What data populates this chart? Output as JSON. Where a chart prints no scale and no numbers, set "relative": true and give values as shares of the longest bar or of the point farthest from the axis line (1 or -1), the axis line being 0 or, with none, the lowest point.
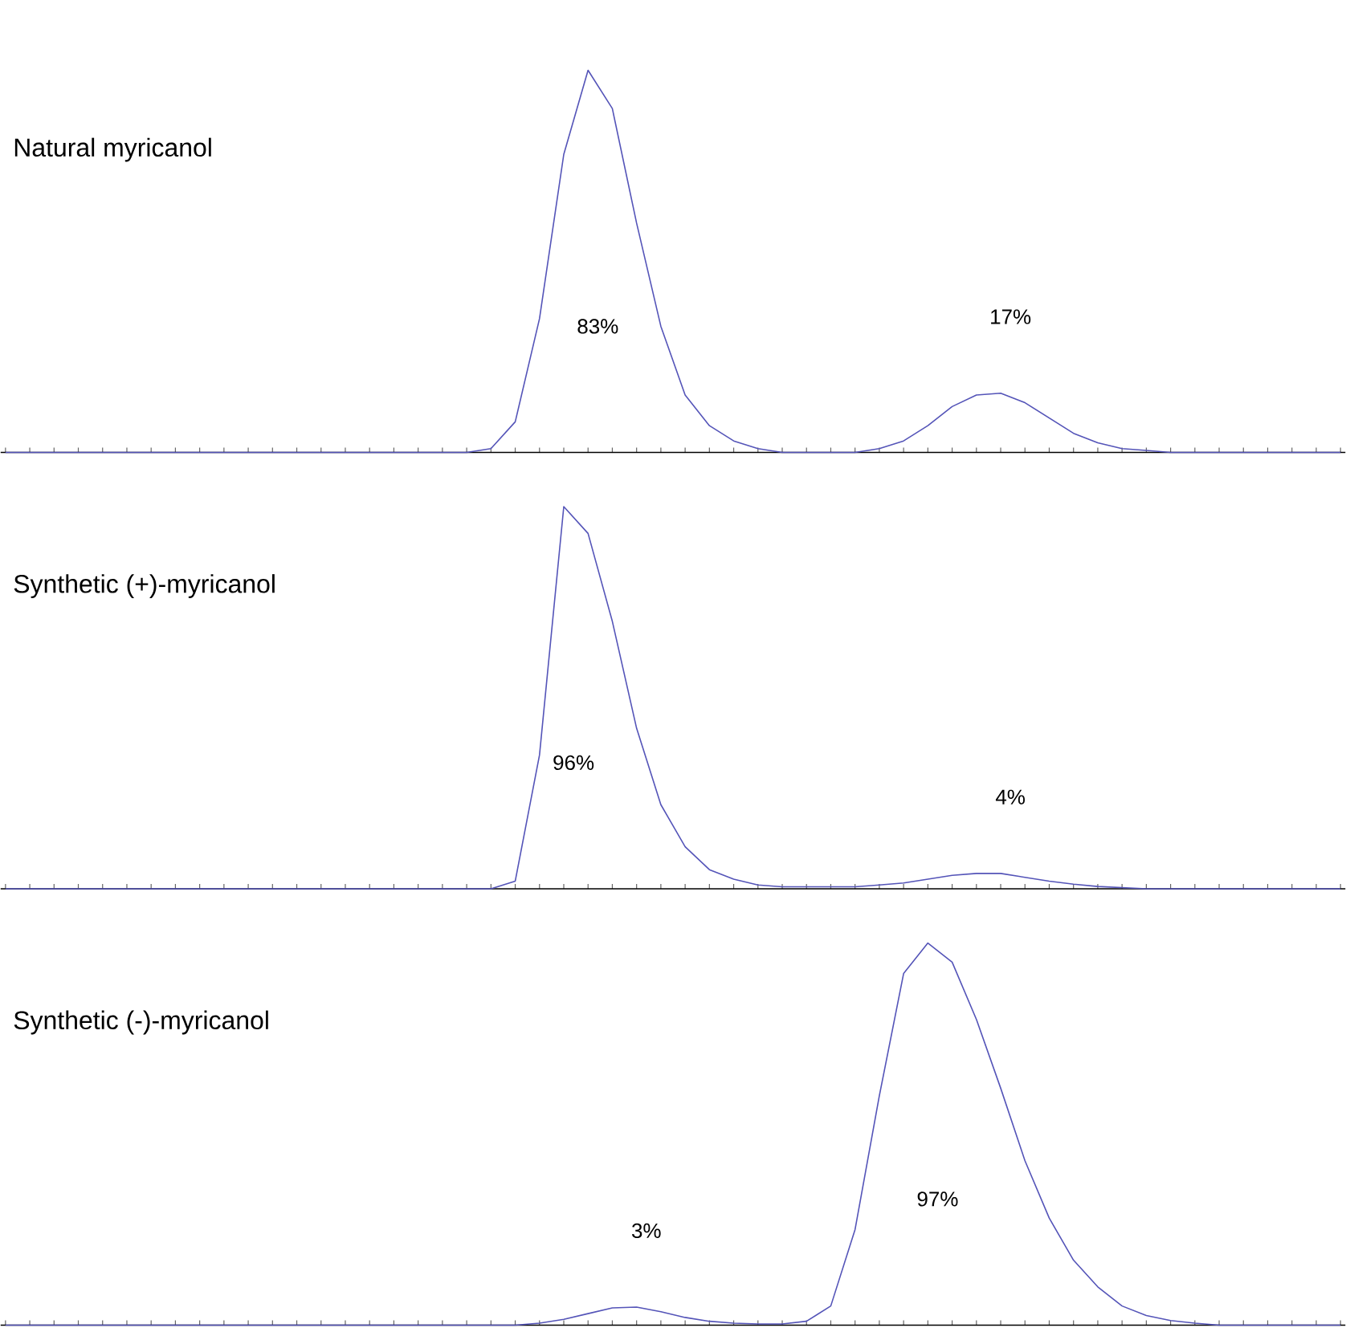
{
  "chart_data": [
    {
      "type": "line",
      "title": "Natural myricanol",
      "relative": true,
      "categories": [
        null,
        null,
        null,
        null,
        null,
        null,
        null,
        null,
        null,
        null,
        null,
        null,
        null,
        null,
        null,
        null,
        null,
        null,
        null,
        null,
        null,
        null,
        null,
        null,
        null,
        null,
        null,
        null,
        null,
        null,
        null,
        null,
        null,
        null,
        null,
        null,
        null,
        null,
        null,
        null,
        null,
        null,
        null,
        null,
        null,
        null,
        null,
        null,
        null,
        null,
        null,
        null,
        null,
        null,
        null,
        null
      ],
      "series": [
        {
          "color": "#5454b8",
          "values": [
            0,
            0,
            0,
            0,
            0,
            0,
            0,
            0,
            0,
            0,
            0,
            0,
            0,
            0,
            0,
            0,
            0,
            0,
            0,
            0,
            0.01,
            0.08,
            0.35,
            0.78,
            1.0,
            0.9,
            0.6,
            0.33,
            0.15,
            0.07,
            0.03,
            0.01,
            0,
            0,
            0,
            0,
            0.01,
            0.03,
            0.07,
            0.12,
            0.15,
            0.155,
            0.13,
            0.09,
            0.05,
            0.025,
            0.01,
            0.005,
            0,
            0,
            0,
            0,
            0,
            0,
            0,
            0
          ]
        }
      ],
      "annotations": [
        "83%",
        "17%"
      ]
    },
    {
      "type": "line",
      "title": "Synthetic (+)-myricanol",
      "relative": true,
      "categories": [
        null,
        null,
        null,
        null,
        null,
        null,
        null,
        null,
        null,
        null,
        null,
        null,
        null,
        null,
        null,
        null,
        null,
        null,
        null,
        null,
        null,
        null,
        null,
        null,
        null,
        null,
        null,
        null,
        null,
        null,
        null,
        null,
        null,
        null,
        null,
        null,
        null,
        null,
        null,
        null,
        null,
        null,
        null,
        null,
        null,
        null,
        null,
        null,
        null,
        null,
        null,
        null,
        null,
        null,
        null,
        null
      ],
      "series": [
        {
          "color": "#5454b8",
          "values": [
            0,
            0,
            0,
            0,
            0,
            0,
            0,
            0,
            0,
            0,
            0,
            0,
            0,
            0,
            0,
            0,
            0,
            0,
            0,
            0,
            0,
            0.02,
            0.35,
            1.0,
            0.93,
            0.7,
            0.42,
            0.22,
            0.11,
            0.05,
            0.025,
            0.01,
            0.005,
            0.005,
            0.005,
            0.005,
            0.01,
            0.015,
            0.025,
            0.035,
            0.04,
            0.04,
            0.03,
            0.02,
            0.012,
            0.006,
            0.003,
            0,
            0,
            0,
            0,
            0,
            0,
            0,
            0,
            0
          ]
        }
      ],
      "annotations": [
        "96%",
        "4%"
      ]
    },
    {
      "type": "line",
      "title": "Synthetic (-)-myricanol",
      "relative": true,
      "categories": [
        null,
        null,
        null,
        null,
        null,
        null,
        null,
        null,
        null,
        null,
        null,
        null,
        null,
        null,
        null,
        null,
        null,
        null,
        null,
        null,
        null,
        null,
        null,
        null,
        null,
        null,
        null,
        null,
        null,
        null,
        null,
        null,
        null,
        null,
        null,
        null,
        null,
        null,
        null,
        null,
        null,
        null,
        null,
        null,
        null,
        null,
        null,
        null,
        null,
        null,
        null,
        null,
        null,
        null,
        null,
        null
      ],
      "series": [
        {
          "color": "#5454b8",
          "values": [
            0,
            0,
            0,
            0,
            0,
            0,
            0,
            0,
            0,
            0,
            0,
            0,
            0,
            0,
            0,
            0,
            0,
            0,
            0,
            0,
            0,
            0,
            0.005,
            0.015,
            0.03,
            0.045,
            0.047,
            0.035,
            0.02,
            0.01,
            0.005,
            0.003,
            0.003,
            0.01,
            0.05,
            0.25,
            0.6,
            0.92,
            1.0,
            0.95,
            0.8,
            0.62,
            0.43,
            0.28,
            0.17,
            0.1,
            0.05,
            0.025,
            0.012,
            0.005,
            0,
            0,
            0,
            0,
            0,
            0
          ]
        }
      ],
      "annotations": [
        "3%",
        "97%"
      ]
    }
  ]
}
